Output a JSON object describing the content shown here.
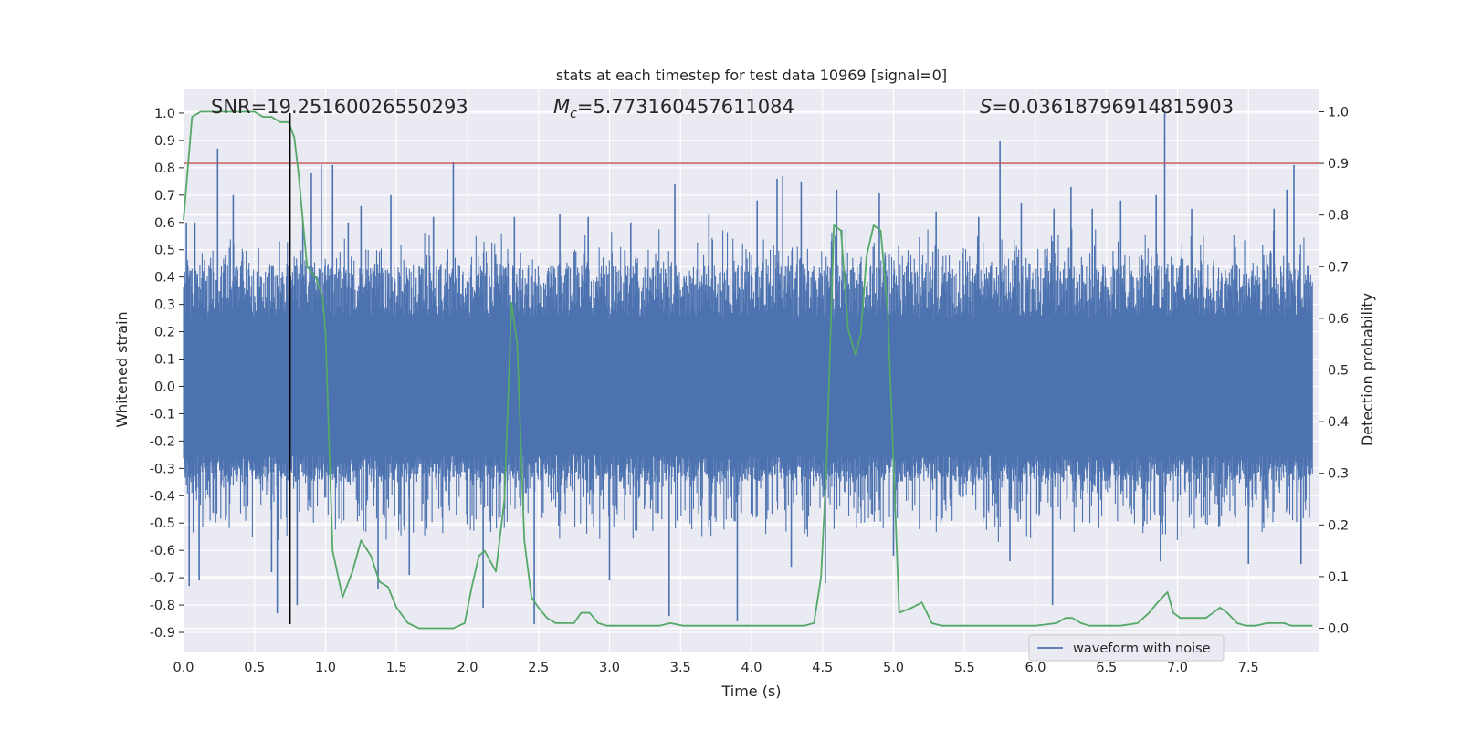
{
  "chart_data": {
    "type": "line",
    "title": "stats at each timestep for test data 10969 [signal=0]",
    "xlabel": "Time (s)",
    "ylabel_left": "Whitened strain",
    "ylabel_right": "Detection probability",
    "xlim": [
      0,
      8
    ],
    "ylim_left": [
      -0.97,
      1.09
    ],
    "ylim_right": [
      -0.045,
      1.045
    ],
    "x_ticks": [
      "0.0",
      "0.5",
      "1.0",
      "1.5",
      "2.0",
      "2.5",
      "3.0",
      "3.5",
      "4.0",
      "4.5",
      "5.0",
      "5.5",
      "6.0",
      "6.5",
      "7.0",
      "7.5"
    ],
    "y_left_ticks": [
      "-0.9",
      "-0.8",
      "-0.7",
      "-0.6",
      "-0.5",
      "-0.4",
      "-0.3",
      "-0.2",
      "-0.1",
      "0.0",
      "0.1",
      "0.2",
      "0.3",
      "0.4",
      "0.5",
      "0.6",
      "0.7",
      "0.8",
      "0.9",
      "1.0"
    ],
    "y_right_ticks": [
      "0.0",
      "0.1",
      "0.2",
      "0.3",
      "0.4",
      "0.5",
      "0.6",
      "0.7",
      "0.8",
      "0.9",
      "1.0"
    ],
    "grid": true,
    "legend": {
      "position": "lower-right",
      "entries": [
        "waveform with noise"
      ]
    },
    "annotations": {
      "snr": "SNR=19.25160026550293",
      "mc_symbol": "M",
      "mc_sub": "c",
      "mc_value": "=5.773160457611084",
      "s_symbol": "S",
      "s_value": "=0.03618796914815903"
    },
    "threshold": {
      "axis": "right",
      "value": 0.9,
      "color": "#c44e52"
    },
    "marker_time": {
      "x": 0.75,
      "ymin": -0.87,
      "ymax": 1.0,
      "color": "#000000"
    },
    "colors": {
      "waveform": "#4c72b0",
      "probability": "#55a868",
      "background": "#eaeaf2",
      "grid": "#ffffff"
    },
    "series": [
      {
        "name": "waveform with noise",
        "axis": "left",
        "envelope": {
          "core": 0.25,
          "typical_peak": 0.5,
          "dense_band_upper": 0.45,
          "dense_band_lower": -0.35,
          "x_end": 7.95
        },
        "peaks": [
          [
            0.02,
            0.6
          ],
          [
            0.04,
            -0.73
          ],
          [
            0.08,
            0.6
          ],
          [
            0.11,
            -0.71
          ],
          [
            0.24,
            0.87
          ],
          [
            0.35,
            0.7
          ],
          [
            0.62,
            -0.68
          ],
          [
            0.66,
            -0.83
          ],
          [
            0.8,
            -0.8
          ],
          [
            0.84,
            0.61
          ],
          [
            0.9,
            0.78
          ],
          [
            0.97,
            0.81
          ],
          [
            1.05,
            0.81
          ],
          [
            1.16,
            0.6
          ],
          [
            1.25,
            0.66
          ],
          [
            1.37,
            -0.74
          ],
          [
            1.46,
            0.7
          ],
          [
            1.59,
            -0.69
          ],
          [
            1.76,
            0.62
          ],
          [
            1.9,
            0.82
          ],
          [
            2.11,
            -0.81
          ],
          [
            2.33,
            0.62
          ],
          [
            2.47,
            -0.87
          ],
          [
            2.65,
            0.63
          ],
          [
            2.85,
            0.62
          ],
          [
            3.0,
            -0.71
          ],
          [
            3.15,
            0.6
          ],
          [
            3.42,
            -0.84
          ],
          [
            3.46,
            0.74
          ],
          [
            3.7,
            0.63
          ],
          [
            3.9,
            -0.86
          ],
          [
            4.04,
            0.68
          ],
          [
            4.18,
            0.76
          ],
          [
            4.22,
            0.77
          ],
          [
            4.28,
            -0.66
          ],
          [
            4.35,
            0.75
          ],
          [
            4.52,
            -0.72
          ],
          [
            4.6,
            0.72
          ],
          [
            4.9,
            0.71
          ],
          [
            5.0,
            -0.62
          ],
          [
            5.3,
            0.64
          ],
          [
            5.6,
            0.62
          ],
          [
            5.75,
            0.9
          ],
          [
            5.82,
            -0.64
          ],
          [
            5.9,
            0.67
          ],
          [
            6.12,
            -0.8
          ],
          [
            6.13,
            0.65
          ],
          [
            6.25,
            0.73
          ],
          [
            6.4,
            0.65
          ],
          [
            6.6,
            0.68
          ],
          [
            6.85,
            0.7
          ],
          [
            6.88,
            -0.64
          ],
          [
            6.91,
            1.0
          ],
          [
            7.1,
            0.65
          ],
          [
            7.5,
            -0.65
          ],
          [
            7.68,
            0.65
          ],
          [
            7.77,
            0.72
          ],
          [
            7.82,
            0.81
          ],
          [
            7.87,
            -0.65
          ]
        ]
      },
      {
        "name": "",
        "axis": "right",
        "x": [
          0.0,
          0.06,
          0.12,
          0.18,
          0.25,
          0.3,
          0.4,
          0.5,
          0.56,
          0.62,
          0.68,
          0.74,
          0.78,
          0.81,
          0.87,
          0.93,
          0.98,
          1.0,
          1.05,
          1.12,
          1.19,
          1.25,
          1.32,
          1.38,
          1.44,
          1.5,
          1.58,
          1.66,
          1.78,
          1.9,
          1.98,
          2.03,
          2.08,
          2.12,
          2.16,
          2.2,
          2.26,
          2.31,
          2.35,
          2.4,
          2.45,
          2.5,
          2.56,
          2.62,
          2.68,
          2.75,
          2.8,
          2.86,
          2.92,
          2.98,
          3.04,
          3.15,
          3.25,
          3.35,
          3.43,
          3.52,
          3.62,
          3.8,
          3.95,
          4.1,
          4.25,
          4.37,
          4.44,
          4.49,
          4.53,
          4.58,
          4.63,
          4.68,
          4.73,
          4.77,
          4.81,
          4.86,
          4.91,
          4.96,
          5.04,
          5.13,
          5.2,
          5.27,
          5.34,
          5.5,
          5.75,
          6.0,
          6.15,
          6.21,
          6.26,
          6.32,
          6.38,
          6.5,
          6.6,
          6.72,
          6.8,
          6.86,
          6.93,
          6.97,
          7.02,
          7.07,
          7.13,
          7.2,
          7.25,
          7.3,
          7.35,
          7.42,
          7.48,
          7.55,
          7.63,
          7.68,
          7.75,
          7.8,
          7.87,
          7.95
        ],
        "values": [
          0.79,
          0.99,
          1.0,
          1.0,
          1.0,
          1.0,
          1.0,
          1.0,
          0.99,
          0.99,
          0.98,
          0.98,
          0.95,
          0.88,
          0.7,
          0.68,
          0.64,
          0.57,
          0.15,
          0.06,
          0.11,
          0.17,
          0.14,
          0.09,
          0.08,
          0.04,
          0.01,
          0.0,
          0.0,
          0.0,
          0.01,
          0.08,
          0.14,
          0.15,
          0.13,
          0.11,
          0.25,
          0.63,
          0.55,
          0.17,
          0.06,
          0.04,
          0.02,
          0.01,
          0.01,
          0.01,
          0.03,
          0.03,
          0.01,
          0.005,
          0.005,
          0.005,
          0.005,
          0.005,
          0.01,
          0.005,
          0.005,
          0.005,
          0.005,
          0.005,
          0.005,
          0.005,
          0.01,
          0.1,
          0.33,
          0.78,
          0.77,
          0.58,
          0.53,
          0.57,
          0.72,
          0.78,
          0.77,
          0.61,
          0.03,
          0.04,
          0.05,
          0.01,
          0.005,
          0.005,
          0.005,
          0.005,
          0.01,
          0.02,
          0.02,
          0.01,
          0.005,
          0.005,
          0.005,
          0.01,
          0.03,
          0.05,
          0.07,
          0.03,
          0.02,
          0.02,
          0.02,
          0.02,
          0.03,
          0.04,
          0.03,
          0.01,
          0.005,
          0.005,
          0.01,
          0.01,
          0.01,
          0.005,
          0.005,
          0.005
        ]
      }
    ]
  }
}
